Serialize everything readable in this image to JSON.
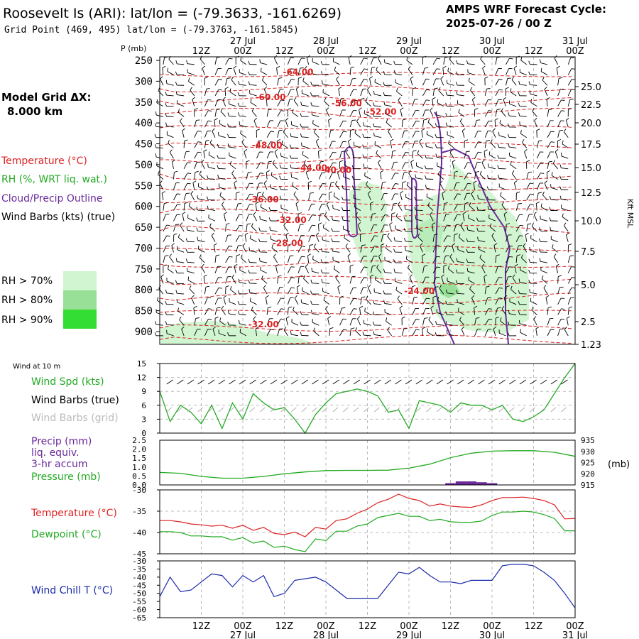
{
  "header": {
    "title": "Roosevelt Is (ARI):  lat/lon = (-79.3633, -161.6269)",
    "subtitle": "Grid Point (469, 495) lat/lon = (-79.3763, -161.5845)",
    "cycle_label": "AMPS WRF Forecast Cycle:",
    "cycle_value": "2025-07-26 / 00  Z"
  },
  "left_legend": {
    "grid_label": "Model Grid ΔX:",
    "grid_value": "8.000 km",
    "temperature": "Temperature (°C)",
    "rh": "RH (%, WRT liq. wat.)",
    "cloud": "Cloud/Precip Outline",
    "wind": "Wind Barbs (kts) (true)",
    "rh70": "RH > 70%",
    "rh80": "RH > 80%",
    "rh90": "RH > 90%",
    "colors": {
      "temperature": "#dd2222",
      "rh": "#22aa22",
      "cloud": "#6a2a9a",
      "rh70": "#d0f5d0",
      "rh80": "#98e098",
      "rh90": "#33dd33"
    }
  },
  "time_axis": {
    "hours": [
      "12Z",
      "00Z",
      "12Z",
      "00Z",
      "12Z",
      "00Z",
      "12Z",
      "00Z",
      "12Z",
      "00Z"
    ],
    "dates": [
      "27 Jul",
      "28 Jul",
      "29 Jul",
      "30 Jul",
      "31 Jul"
    ],
    "range_hours": [
      6,
      126
    ]
  },
  "chart_data": [
    {
      "type": "line",
      "panel": "vertical-profile",
      "pressure_label": "P (mb)",
      "pressure_ticks": [
        250,
        300,
        350,
        400,
        450,
        500,
        550,
        600,
        650,
        700,
        750,
        800,
        850,
        900
      ],
      "height_label": "Kft MSL",
      "height_ticks": [
        "25.0",
        "22.5",
        "20.0",
        "17.5",
        "15.0",
        "12.5",
        "10.0",
        "7.5",
        "5.0",
        "2.5",
        "1.23"
      ],
      "isotherm_labels": [
        {
          "text": "-64.00",
          "hour": 46,
          "p": 285
        },
        {
          "text": "-60.00",
          "hour": 38,
          "p": 345
        },
        {
          "text": "-56.00",
          "hour": 60,
          "p": 360
        },
        {
          "text": "-52.00",
          "hour": 70,
          "p": 380
        },
        {
          "text": "-48.00",
          "hour": 37,
          "p": 460
        },
        {
          "text": "-44.00",
          "hour": 50,
          "p": 515
        },
        {
          "text": "-40.00",
          "hour": 57,
          "p": 520
        },
        {
          "text": "-36.00",
          "hour": 36,
          "p": 590
        },
        {
          "text": "-32.00",
          "hour": 44,
          "p": 640
        },
        {
          "text": "-28.00",
          "hour": 43,
          "p": 695
        },
        {
          "text": "-24.00",
          "hour": 81,
          "p": 810
        },
        {
          "text": "-32.00",
          "hour": 36,
          "p": 890
        }
      ]
    },
    {
      "type": "line",
      "panel": "surface-wind",
      "title": "Wind at 10 m",
      "labels": {
        "speed": "Wind Spd (kts)",
        "barbs_true": "Wind Barbs (true)",
        "barbs_grid": "Wind Barbs (grid)"
      },
      "y_ticks": [
        0,
        3,
        6,
        9,
        12,
        15
      ],
      "ylim": [
        0,
        15
      ],
      "series": [
        {
          "name": "Wind Spd (kts)",
          "color": "#22aa22",
          "x": [
            6,
            9,
            12,
            15,
            18,
            21,
            24,
            27,
            30,
            33,
            36,
            39,
            42,
            45,
            48,
            51,
            54,
            57,
            60,
            63,
            66,
            69,
            72,
            75,
            78,
            81,
            84,
            87,
            90,
            93,
            96,
            99,
            102,
            105,
            108,
            111,
            114,
            117,
            120,
            123,
            126
          ],
          "y": [
            9,
            2.5,
            6,
            4.5,
            2,
            6,
            1,
            6.5,
            3,
            8.5,
            6.5,
            5,
            5.5,
            3,
            0,
            4,
            6.5,
            8.5,
            9,
            9.5,
            9,
            8,
            4.5,
            5,
            1,
            7,
            6.5,
            6,
            4.5,
            6.5,
            6,
            6,
            5,
            6,
            3,
            2.5,
            3.5,
            5,
            8.5,
            12,
            15
          ]
        }
      ]
    },
    {
      "type": "line",
      "panel": "precip-pressure",
      "labels": {
        "precip": "Precip (mm)",
        "precip2": "liq. equiv.",
        "precip3": "3-hr accum",
        "pressure": "Pressure (mb)"
      },
      "left_ticks": [
        "0.0",
        "0.5",
        "1.0",
        "1.5",
        "2.0",
        "2.5"
      ],
      "right_ticks": [
        "915",
        "920",
        "925",
        "930",
        "935"
      ],
      "right_unit": "(mb)",
      "series": [
        {
          "name": "Pressure (mb)",
          "color": "#22aa22",
          "x": [
            6,
            12,
            18,
            24,
            30,
            36,
            42,
            48,
            54,
            60,
            66,
            72,
            78,
            84,
            90,
            96,
            102,
            108,
            114,
            120,
            126
          ],
          "y": [
            920.6,
            920.2,
            918.8,
            918,
            918,
            918.8,
            920,
            920.8,
            921.4,
            921.5,
            921.5,
            921.6,
            922.5,
            924.3,
            927.2,
            929.2,
            930.1,
            930.3,
            930.3,
            929.6,
            927.8
          ]
        },
        {
          "name": "Precip (mm)",
          "color": "#6a2a9a",
          "x": [
            90,
            93,
            96,
            99,
            102
          ],
          "y": [
            0.1,
            0.2,
            0.2,
            0.15,
            0.1
          ]
        }
      ]
    },
    {
      "type": "line",
      "panel": "temperature-dewpoint",
      "labels": {
        "temperature": "Temperature (°C)",
        "dewpoint": "Dewpoint (°C)"
      },
      "y_ticks": [
        -30,
        -35,
        -40,
        -45
      ],
      "ylim": [
        -45,
        -30
      ],
      "series": [
        {
          "name": "Temperature (°C)",
          "color": "#dd2222",
          "x": [
            6,
            9,
            12,
            15,
            18,
            21,
            24,
            27,
            30,
            33,
            36,
            39,
            42,
            45,
            48,
            51,
            54,
            57,
            60,
            63,
            66,
            69,
            72,
            75,
            78,
            81,
            84,
            87,
            90,
            93,
            96,
            99,
            102,
            105,
            108,
            111,
            114,
            117,
            120,
            123,
            126
          ],
          "y": [
            -37.2,
            -37.2,
            -37.5,
            -38,
            -38.2,
            -38.5,
            -38.3,
            -39,
            -38.3,
            -39.5,
            -38.8,
            -40.2,
            -40.5,
            -39.9,
            -41,
            -38.8,
            -39.2,
            -37.2,
            -36.8,
            -35.5,
            -34.5,
            -33,
            -32.2,
            -31,
            -32,
            -32.5,
            -33.8,
            -33.3,
            -33.8,
            -34,
            -34.1,
            -33.5,
            -32.5,
            -31.8,
            -31.8,
            -31.7,
            -32,
            -32.5,
            -33.5,
            -36.8,
            -36.7
          ]
        },
        {
          "name": "Dewpoint (°C)",
          "color": "#22aa22",
          "x": [
            6,
            9,
            12,
            15,
            18,
            21,
            24,
            27,
            30,
            33,
            36,
            39,
            42,
            45,
            48,
            51,
            54,
            57,
            60,
            63,
            66,
            69,
            72,
            75,
            78,
            81,
            84,
            87,
            90,
            93,
            96,
            99,
            102,
            105,
            108,
            111,
            114,
            117,
            120,
            123,
            126
          ],
          "y": [
            -39.8,
            -39.8,
            -40,
            -40.8,
            -40.8,
            -41,
            -41,
            -41.8,
            -41.2,
            -42.5,
            -42,
            -43.5,
            -43.2,
            -44,
            -44.5,
            -41.5,
            -41.9,
            -39.7,
            -39.7,
            -38.5,
            -38,
            -36.5,
            -36,
            -35.5,
            -36.2,
            -36.2,
            -37.2,
            -36.9,
            -37.5,
            -37.6,
            -37.6,
            -37.3,
            -36,
            -35.2,
            -35.2,
            -35,
            -35.2,
            -35.8,
            -36.7,
            -39.6,
            -39.6
          ]
        }
      ]
    },
    {
      "type": "line",
      "panel": "wind-chill",
      "labels": {
        "chill": "Wind Chill T (°C)"
      },
      "y_ticks": [
        -30,
        -35,
        -40,
        -45,
        -50,
        -55,
        -60,
        -65
      ],
      "ylim": [
        -65,
        -30
      ],
      "series": [
        {
          "name": "Wind Chill T (°C)",
          "color": "#1a2aaa",
          "x": [
            6,
            9,
            12,
            15,
            18,
            21,
            24,
            27,
            30,
            33,
            36,
            39,
            42,
            45,
            48,
            51,
            54,
            57,
            60,
            63,
            66,
            69,
            72,
            75,
            78,
            81,
            84,
            87,
            90,
            93,
            96,
            99,
            102,
            105,
            108,
            111,
            114,
            117,
            120,
            123,
            126
          ],
          "y": [
            -52,
            -40,
            -49,
            -48,
            -43,
            -38,
            -39,
            -46,
            -39,
            -43,
            -39,
            -52,
            -50,
            -42,
            -41,
            -40,
            -43,
            -48,
            -53,
            -53,
            -53,
            -53,
            -45,
            -37,
            -38,
            -34,
            -39,
            -43,
            -43,
            -44,
            -42,
            -42,
            -42,
            -33,
            -32,
            -32,
            -33,
            -37,
            -42,
            -50,
            -59
          ]
        }
      ]
    }
  ]
}
